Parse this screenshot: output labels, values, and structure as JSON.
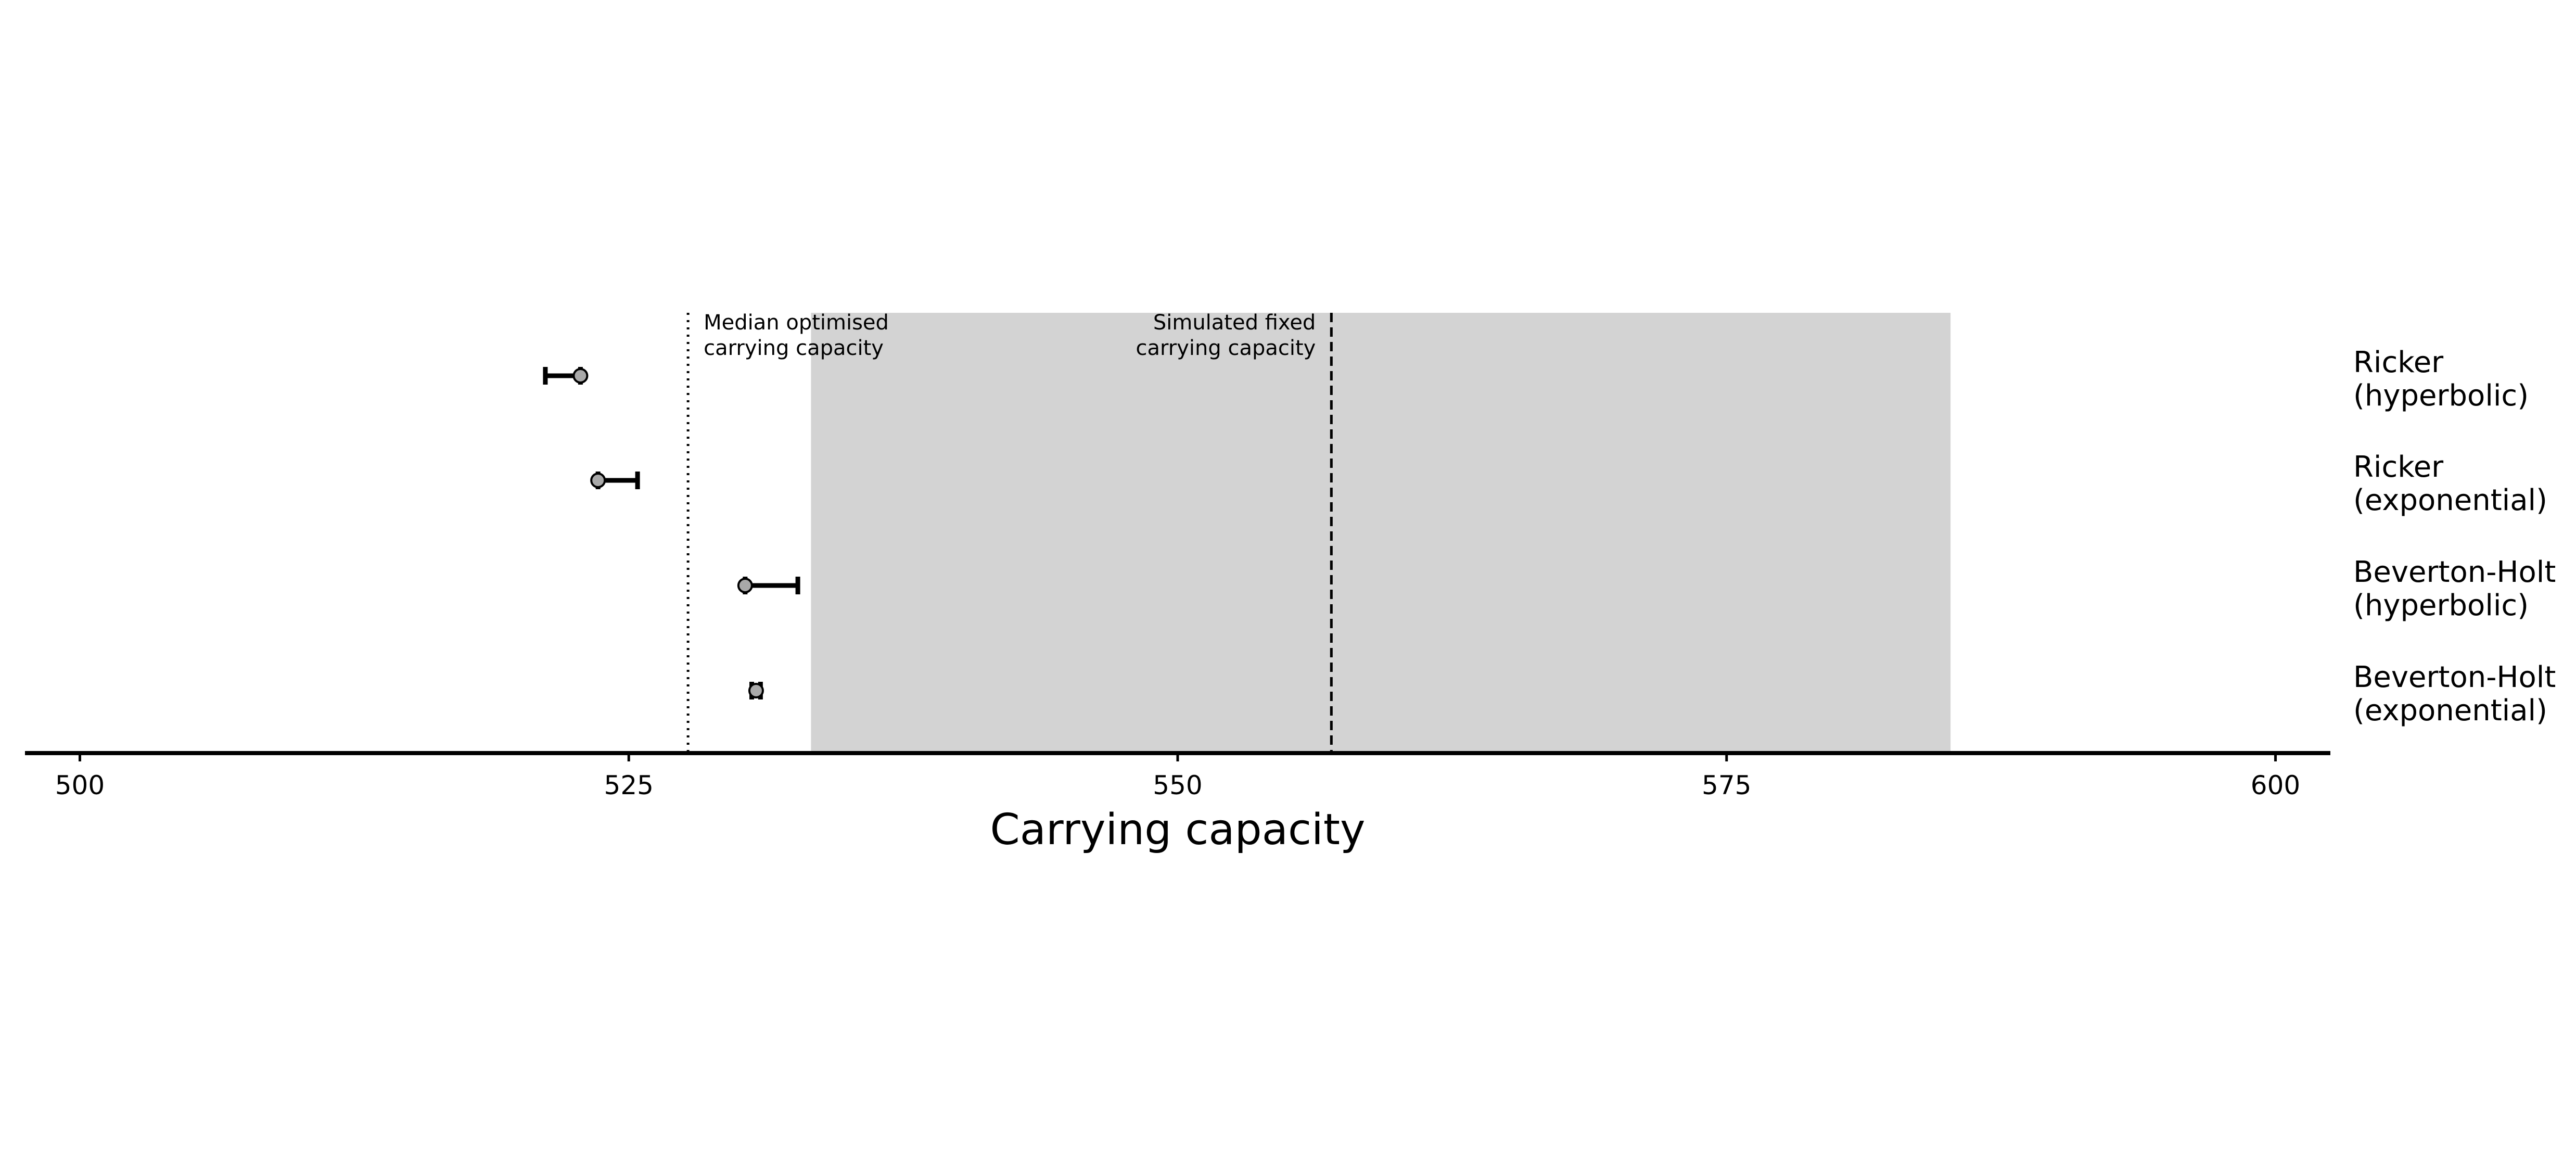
{
  "chart_data": {
    "type": "errorbar",
    "title": "",
    "xlabel": "Carrying capacity",
    "ylabel": "",
    "xlim": [
      497.5,
      602.5
    ],
    "xticks": [
      500,
      525,
      550,
      575,
      600
    ],
    "xtick_labels": [
      "500",
      "525",
      "550",
      "575",
      "600"
    ],
    "grid": false,
    "legend": "none",
    "categories": [
      {
        "line1": "Ricker",
        "line2": "(hyperbolic)"
      },
      {
        "line1": "Ricker",
        "line2": "(exponential)"
      },
      {
        "line1": "Beverton-Holt",
        "line2": "(hyperbolic)"
      },
      {
        "line1": "Beverton-Holt",
        "line2": "(exponential)"
      }
    ],
    "estimates": [
      {
        "point": 522.8,
        "lower": 521.2,
        "upper": 522.8
      },
      {
        "point": 523.6,
        "lower": 523.6,
        "upper": 525.4
      },
      {
        "point": 530.3,
        "lower": 530.3,
        "upper": 532.7
      },
      {
        "point": 530.8,
        "lower": 530.6,
        "upper": 531.0
      }
    ],
    "shaded_band": {
      "from": 533.3,
      "to": 585.2,
      "color": "#d3d3d3"
    },
    "reference_lines": [
      {
        "value": 527.7,
        "style": "dotted",
        "label_line1": "Median optimised",
        "label_line2": "carrying capacity",
        "label_side": "right"
      },
      {
        "value": 557.0,
        "style": "dashed",
        "label_line1": "Simulated fixed",
        "label_line2": "carrying capacity",
        "label_side": "left"
      }
    ],
    "colors": {
      "point_fill": "#a9a9a9",
      "line": "#000000",
      "band": "#d3d3d3"
    }
  }
}
